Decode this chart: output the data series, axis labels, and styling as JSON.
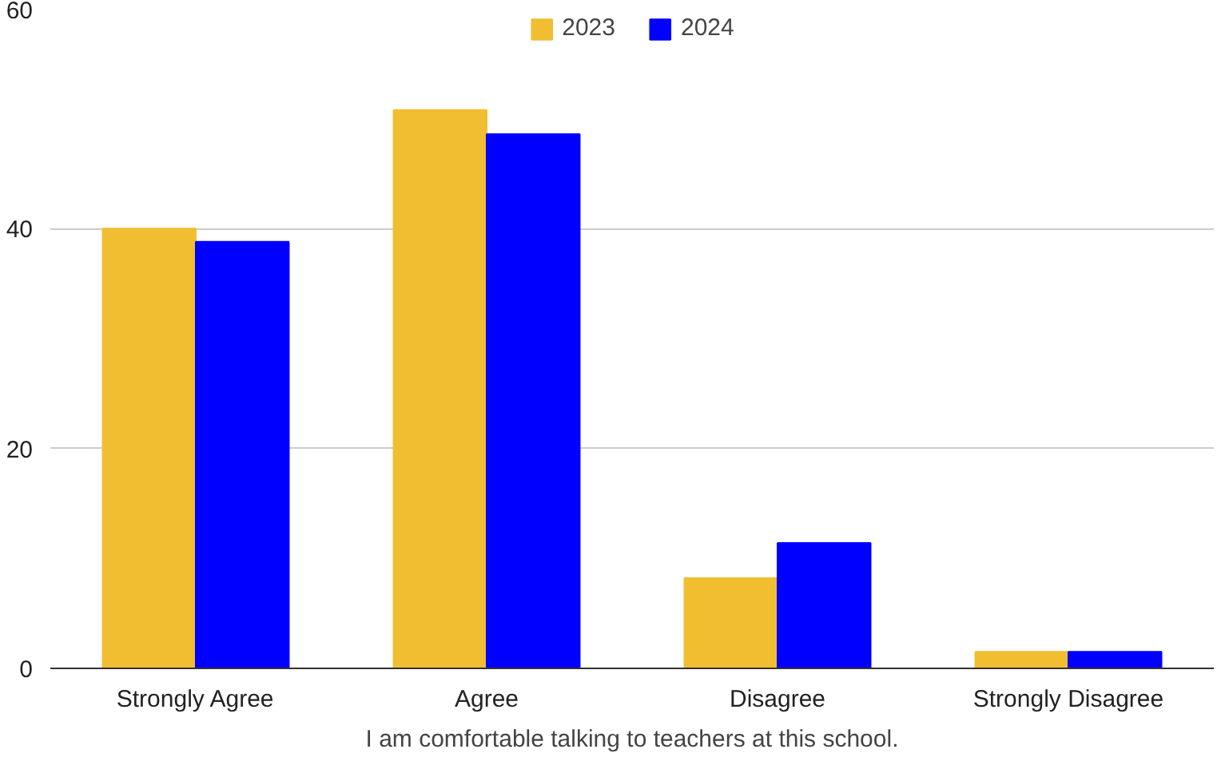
{
  "chart_data": {
    "type": "bar",
    "xlabel": "I am comfortable talking to teachers at this school.",
    "categories": [
      "Strongly Agree",
      "Agree",
      "Disagree",
      "Strongly Disagree"
    ],
    "series": [
      {
        "name": "2023",
        "color": "#f1be32",
        "values": [
          40,
          50.8,
          8.2,
          1.5
        ]
      },
      {
        "name": "2024",
        "color": "#0000ff",
        "values": [
          38.8,
          48.6,
          11.4,
          1.5
        ]
      }
    ],
    "ylim": [
      0,
      60
    ],
    "yticks": [
      0,
      20,
      40,
      60
    ],
    "grid": "y",
    "legend": "top"
  }
}
